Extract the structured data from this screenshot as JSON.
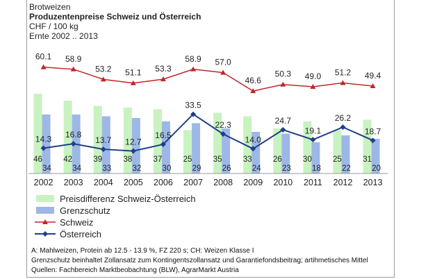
{
  "header": {
    "line1": "Brotweizen",
    "title": "Produzentenpreise Schweiz und Österreich",
    "unit": "CHF / 100 kg",
    "range": "Ernte 2002 .. 2013"
  },
  "footnotes": [
    "A: Mahlweizen, Protein ab 12.5 - 13.9 %, FZ 220 s; CH: Weizen Klasse I",
    "Grenzschutz beinhaltet Zollansatz zum Kontingentszollansatz und Garantiefondsbeitrag; artihmetisches Mittel",
    "Quellen: Fachbereich Marktbeobachtung (BLW), AgrarMarkt Austria"
  ],
  "colors": {
    "diff": "#c9f2c1",
    "grenz": "#9db8e6",
    "schweiz": "#c0262a",
    "oesterreich": "#1f3f86"
  },
  "chart_data": {
    "type": "bar",
    "categories": [
      "2002",
      "2003",
      "2004",
      "2005",
      "2006",
      "2007",
      "2008",
      "2009",
      "2010",
      "2011",
      "2012",
      "2013"
    ],
    "series": [
      {
        "name": "Preisdifferenz Schweiz-Österreich",
        "type": "bar",
        "values": [
          46,
          42,
          39,
          38,
          37,
          25,
          35,
          33,
          26,
          30,
          25,
          31
        ]
      },
      {
        "name": "Grenzschutz",
        "type": "bar",
        "values": [
          34,
          34,
          33,
          32,
          30,
          29,
          26,
          24,
          23,
          18,
          22,
          20
        ]
      },
      {
        "name": "Schweiz",
        "type": "line",
        "marker": "triangle",
        "values": [
          60.1,
          58.9,
          53.2,
          51.1,
          53.3,
          58.9,
          57.0,
          46.6,
          50.3,
          49.0,
          51.2,
          49.4
        ]
      },
      {
        "name": "Österreich",
        "type": "line",
        "marker": "diamond",
        "values": [
          14.3,
          16.8,
          13.7,
          12.7,
          16.5,
          33.5,
          22.3,
          14.0,
          24.7,
          19.1,
          26.2,
          18.7
        ]
      }
    ],
    "legend_position": "bottom-left"
  }
}
